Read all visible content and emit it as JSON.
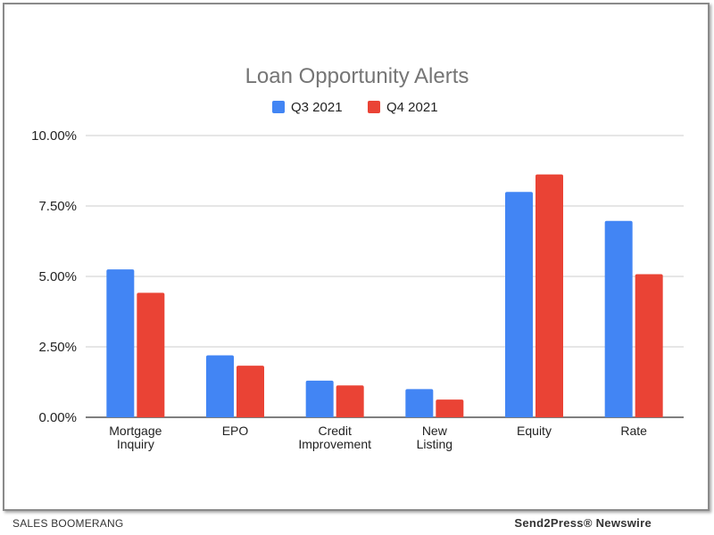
{
  "chart_data": {
    "type": "bar",
    "title": "Loan Opportunity Alerts",
    "categories": [
      [
        "Mortgage",
        "Inquiry"
      ],
      [
        "EPO"
      ],
      [
        "Credit",
        "Improvement"
      ],
      [
        "New",
        "Listing"
      ],
      [
        "Equity"
      ],
      [
        "Rate"
      ]
    ],
    "series": [
      {
        "name": "Q3 2021",
        "color": "#4285f4",
        "values": [
          5.25,
          2.2,
          1.3,
          1.0,
          8.0,
          6.97
        ]
      },
      {
        "name": "Q4 2021",
        "color": "#ea4335",
        "values": [
          4.42,
          1.83,
          1.13,
          0.63,
          8.62,
          5.08
        ]
      }
    ],
    "ylim": [
      0,
      10
    ],
    "yticks": [
      0,
      2.5,
      5,
      7.5,
      10
    ],
    "ytick_labels": [
      "0.00%",
      "2.50%",
      "5.00%",
      "7.50%",
      "10.00%"
    ],
    "grid": true,
    "legend": "top-center"
  },
  "footer": {
    "left": "SALES BOOMERANG",
    "right": "Send2Press® Newswire"
  }
}
